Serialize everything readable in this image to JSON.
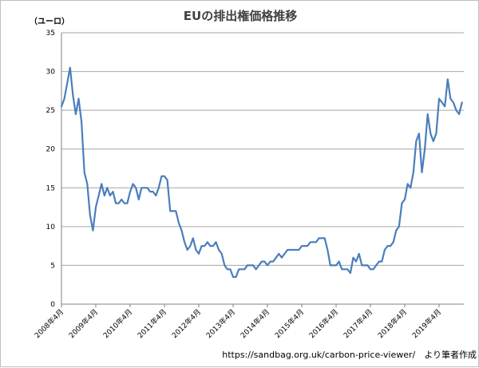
{
  "chart_data": {
    "type": "line",
    "title": "EUの排出権価格推移",
    "ylabel": "（ユーロ）",
    "xlabel": "",
    "ylim": [
      0,
      35
    ],
    "y_ticks": [
      0,
      5,
      10,
      15,
      20,
      25,
      30,
      35
    ],
    "x_tick_labels": [
      "2008年4月",
      "2009年4月",
      "2010年4月",
      "2011年4月",
      "2012年4月",
      "2013年4月",
      "2014年4月",
      "2015年4月",
      "2016年4月",
      "2017年4月",
      "2018年4月",
      "2019年4月"
    ],
    "grid": "horizontal",
    "legend": "none",
    "source": "https://sandbag.org.uk/carbon-price-viewer/　より筆者作成",
    "series": [
      {
        "color": "#4a7ebb",
        "points": [
          [
            "2008-04",
            25.5
          ],
          [
            "2008-05",
            26.5
          ],
          [
            "2008-06",
            28.5
          ],
          [
            "2008-07",
            30.5
          ],
          [
            "2008-08",
            27
          ],
          [
            "2008-09",
            24.5
          ],
          [
            "2008-10",
            26.5
          ],
          [
            "2008-11",
            23.5
          ],
          [
            "2008-12",
            17
          ],
          [
            "2009-01",
            15.5
          ],
          [
            "2009-02",
            11.5
          ],
          [
            "2009-03",
            9.5
          ],
          [
            "2009-04",
            12.5
          ],
          [
            "2009-05",
            14
          ],
          [
            "2009-06",
            15.5
          ],
          [
            "2009-07",
            14
          ],
          [
            "2009-08",
            15
          ],
          [
            "2009-09",
            14
          ],
          [
            "2009-10",
            14.5
          ],
          [
            "2009-11",
            13
          ],
          [
            "2009-12",
            13
          ],
          [
            "2010-01",
            13.5
          ],
          [
            "2010-02",
            13
          ],
          [
            "2010-03",
            13
          ],
          [
            "2010-04",
            14.5
          ],
          [
            "2010-05",
            15.5
          ],
          [
            "2010-06",
            15
          ],
          [
            "2010-07",
            13.5
          ],
          [
            "2010-08",
            15
          ],
          [
            "2010-09",
            15
          ],
          [
            "2010-10",
            15
          ],
          [
            "2010-11",
            14.5
          ],
          [
            "2010-12",
            14.5
          ],
          [
            "2011-01",
            14
          ],
          [
            "2011-02",
            15
          ],
          [
            "2011-03",
            16.5
          ],
          [
            "2011-04",
            16.5
          ],
          [
            "2011-05",
            16
          ],
          [
            "2011-06",
            12
          ],
          [
            "2011-07",
            12
          ],
          [
            "2011-08",
            12
          ],
          [
            "2011-09",
            10.5
          ],
          [
            "2011-10",
            9.5
          ],
          [
            "2011-11",
            8
          ],
          [
            "2011-12",
            7
          ],
          [
            "2012-01",
            7.5
          ],
          [
            "2012-02",
            8.5
          ],
          [
            "2012-03",
            7
          ],
          [
            "2012-04",
            6.5
          ],
          [
            "2012-05",
            7.5
          ],
          [
            "2012-06",
            7.5
          ],
          [
            "2012-07",
            8
          ],
          [
            "2012-08",
            7.5
          ],
          [
            "2012-09",
            7.5
          ],
          [
            "2012-10",
            8
          ],
          [
            "2012-11",
            7
          ],
          [
            "2012-12",
            6.5
          ],
          [
            "2013-01",
            5
          ],
          [
            "2013-02",
            4.5
          ],
          [
            "2013-03",
            4.5
          ],
          [
            "2013-04",
            3.5
          ],
          [
            "2013-05",
            3.5
          ],
          [
            "2013-06",
            4.5
          ],
          [
            "2013-07",
            4.5
          ],
          [
            "2013-08",
            4.5
          ],
          [
            "2013-09",
            5
          ],
          [
            "2013-10",
            5
          ],
          [
            "2013-11",
            5
          ],
          [
            "2013-12",
            4.5
          ],
          [
            "2014-01",
            5
          ],
          [
            "2014-02",
            5.5
          ],
          [
            "2014-03",
            5.5
          ],
          [
            "2014-04",
            5
          ],
          [
            "2014-05",
            5.5
          ],
          [
            "2014-06",
            5.5
          ],
          [
            "2014-07",
            6
          ],
          [
            "2014-08",
            6.5
          ],
          [
            "2014-09",
            6
          ],
          [
            "2014-10",
            6.5
          ],
          [
            "2014-11",
            7
          ],
          [
            "2014-12",
            7
          ],
          [
            "2015-01",
            7
          ],
          [
            "2015-02",
            7
          ],
          [
            "2015-03",
            7
          ],
          [
            "2015-04",
            7.5
          ],
          [
            "2015-05",
            7.5
          ],
          [
            "2015-06",
            7.5
          ],
          [
            "2015-07",
            8
          ],
          [
            "2015-08",
            8
          ],
          [
            "2015-09",
            8
          ],
          [
            "2015-10",
            8.5
          ],
          [
            "2015-11",
            8.5
          ],
          [
            "2015-12",
            8.5
          ],
          [
            "2016-01",
            7
          ],
          [
            "2016-02",
            5
          ],
          [
            "2016-03",
            5
          ],
          [
            "2016-04",
            5
          ],
          [
            "2016-05",
            5.5
          ],
          [
            "2016-06",
            4.5
          ],
          [
            "2016-07",
            4.5
          ],
          [
            "2016-08",
            4.5
          ],
          [
            "2016-09",
            4
          ],
          [
            "2016-10",
            6
          ],
          [
            "2016-11",
            5.5
          ],
          [
            "2016-12",
            6.5
          ],
          [
            "2017-01",
            5
          ],
          [
            "2017-02",
            5
          ],
          [
            "2017-03",
            5
          ],
          [
            "2017-04",
            4.5
          ],
          [
            "2017-05",
            4.5
          ],
          [
            "2017-06",
            5
          ],
          [
            "2017-07",
            5.5
          ],
          [
            "2017-08",
            5.5
          ],
          [
            "2017-09",
            7
          ],
          [
            "2017-10",
            7.5
          ],
          [
            "2017-11",
            7.5
          ],
          [
            "2017-12",
            8
          ],
          [
            "2018-01",
            9.5
          ],
          [
            "2018-02",
            10
          ],
          [
            "2018-03",
            13
          ],
          [
            "2018-04",
            13.5
          ],
          [
            "2018-05",
            15.5
          ],
          [
            "2018-06",
            15
          ],
          [
            "2018-07",
            17
          ],
          [
            "2018-08",
            21
          ],
          [
            "2018-09",
            22
          ],
          [
            "2018-10",
            17
          ],
          [
            "2018-11",
            20
          ],
          [
            "2018-12",
            24.5
          ],
          [
            "2019-01",
            22
          ],
          [
            "2019-02",
            21
          ],
          [
            "2019-03",
            22
          ],
          [
            "2019-04",
            26.5
          ],
          [
            "2019-05",
            26
          ],
          [
            "2019-06",
            25.5
          ],
          [
            "2019-07",
            29
          ],
          [
            "2019-08",
            26.5
          ],
          [
            "2019-09",
            26
          ],
          [
            "2019-10",
            25
          ],
          [
            "2019-11",
            24.5
          ],
          [
            "2019-12",
            26
          ]
        ]
      }
    ]
  }
}
